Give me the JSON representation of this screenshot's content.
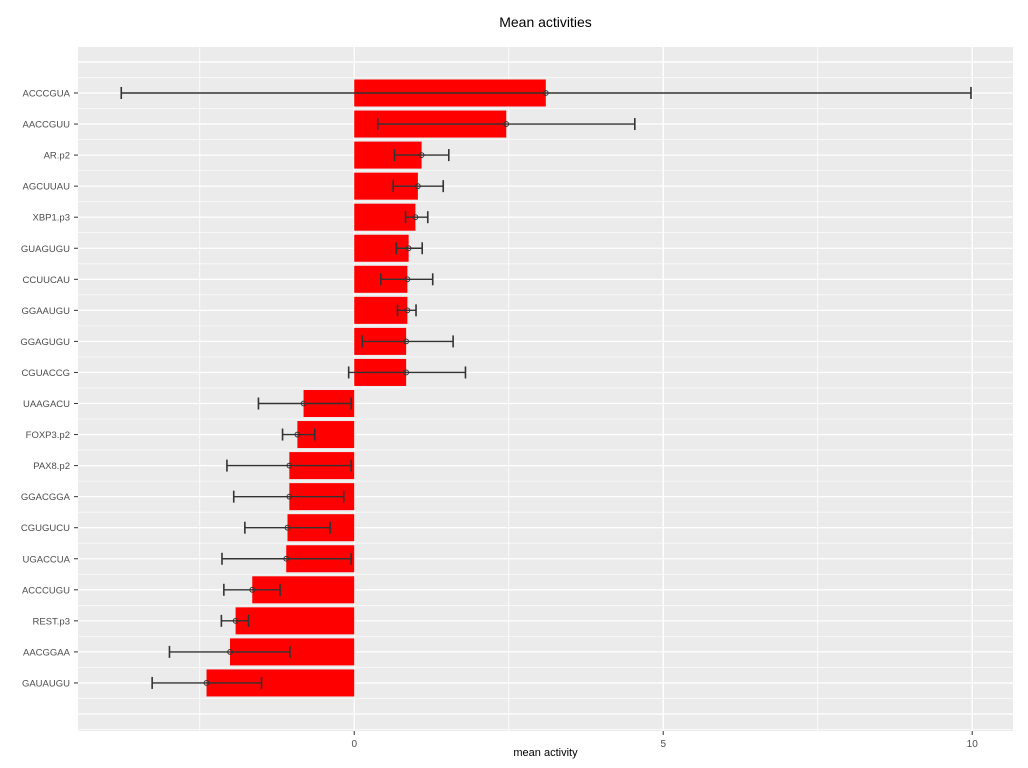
{
  "chart_data": {
    "type": "bar",
    "orientation": "horizontal",
    "title": "Mean activities",
    "xlabel": "mean activity",
    "ylabel": "",
    "legend": "none",
    "grid": "on",
    "panel_style": "ggplot-gray",
    "categories": [
      "ACCCGUA",
      "AACCGUU",
      "AR.p2",
      "AGCUUAU",
      "XBP1.p3",
      "GUAGUGU",
      "CCUUCAU",
      "GGAAUGU",
      "GGAGUGU",
      "CGUACCG",
      "UAAGACU",
      "FOXP3.p2",
      "PAX8.p2",
      "GGACGGA",
      "CGUGUCU",
      "UGACCUA",
      "ACCCUGU",
      "REST.p3",
      "AACGGAA",
      "GAUAUGU"
    ],
    "values": [
      3.1,
      2.46,
      1.09,
      1.03,
      0.99,
      0.88,
      0.86,
      0.86,
      0.84,
      0.84,
      -0.82,
      -0.92,
      -1.05,
      -1.05,
      -1.08,
      -1.1,
      -1.65,
      -1.92,
      -2.01,
      -2.39
    ],
    "error_low": [
      -3.77,
      0.38,
      0.65,
      0.63,
      0.83,
      0.68,
      0.43,
      0.7,
      0.13,
      -0.09,
      -1.55,
      -1.16,
      -2.06,
      -1.95,
      -1.77,
      -2.14,
      -2.11,
      -2.15,
      -2.99,
      -3.27
    ],
    "error_high": [
      9.98,
      4.54,
      1.53,
      1.44,
      1.19,
      1.1,
      1.27,
      1.0,
      1.6,
      1.8,
      -0.05,
      -0.64,
      -0.05,
      -0.17,
      -0.39,
      -0.05,
      -1.2,
      -1.71,
      -1.04,
      -1.5
    ],
    "x_major_ticks": [
      0,
      5,
      10
    ],
    "x_major_tick_labels": [
      "0",
      "5",
      "10"
    ],
    "x_minor_ticks": [
      -2.5,
      2.5,
      7.5
    ],
    "xlim": [
      -4.47,
      10.66
    ],
    "colors": {
      "bar": "#FF0000",
      "panel": "#EBEBEB",
      "grid": "#FFFFFF",
      "errorbar": "#333333",
      "tick_mark": "#333333",
      "axis_text": "#4D4D4D",
      "title_text": "#000000"
    }
  }
}
